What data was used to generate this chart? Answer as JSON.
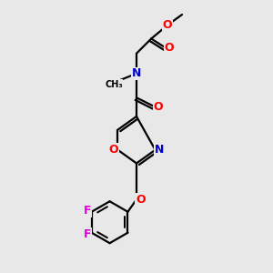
{
  "bg": "#e8e8e8",
  "bond_color": "#000000",
  "O_color": "#ff0000",
  "N_color": "#0000cc",
  "F_color": "#dd00dd",
  "bond_lw": 1.6,
  "font_size": 9,
  "xlim": [
    0,
    10
  ],
  "ylim": [
    0,
    10
  ]
}
